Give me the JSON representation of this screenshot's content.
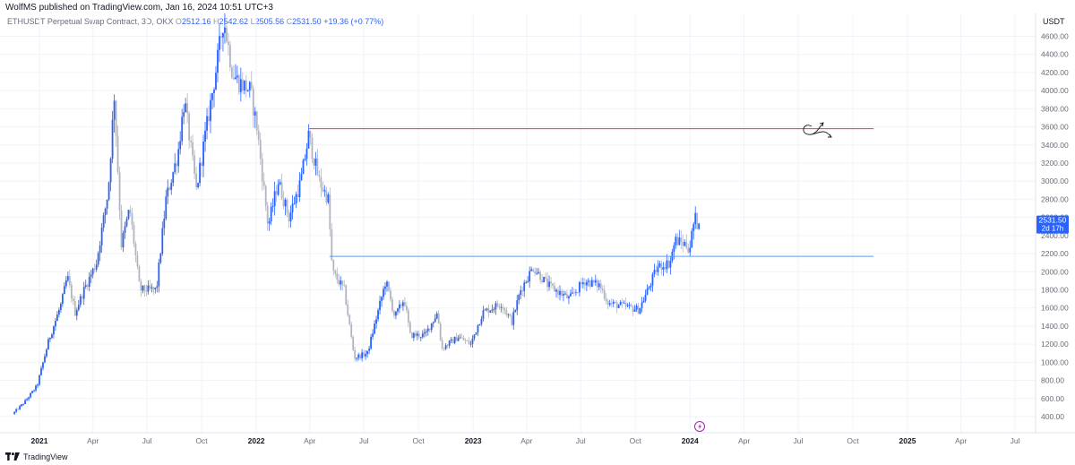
{
  "header": {
    "published_text": "WolfMS published on TradingView.com, Jan 16, 2024 10:51 UTC+3"
  },
  "legend": {
    "symbol": "ETHUSDT Perpetual Swap Contract, 3D, OKX",
    "open_label": "O",
    "open": "2512.16",
    "high_label": "H",
    "high": "2542.62",
    "low_label": "L",
    "low": "2505.56",
    "close_label": "C",
    "close": "2531.50",
    "change": "+19.36 (+0.77%)"
  },
  "price_axis": {
    "currency": "USDT",
    "last_price": "2531.50",
    "countdown": "2d 17h"
  },
  "footer": {
    "brand": "TradingView"
  },
  "colors": {
    "up": "#2962ff",
    "down": "#b2b5be",
    "resistance": "#f23645",
    "support": "#5b9cf6",
    "price_tag": "#2962ff"
  },
  "chart_data": {
    "type": "candlestick",
    "title": "ETHUSDT Perpetual Swap Contract, 3D, OKX",
    "ylim": [
      250,
      4860
    ],
    "y_ticks": [
      "400.00",
      "600.00",
      "800.00",
      "1000.00",
      "1200.00",
      "1400.00",
      "1600.00",
      "1800.00",
      "2000.00",
      "2200.00",
      "2400.00",
      "2600.00",
      "2800.00",
      "3000.00",
      "3200.00",
      "3400.00",
      "3600.00",
      "3800.00",
      "4000.00",
      "4200.00",
      "4400.00",
      "4600.00"
    ],
    "x_ticks": [
      {
        "label": "2021",
        "date": "2021-01-01",
        "bold": true
      },
      {
        "label": "Apr",
        "date": "2021-04-01"
      },
      {
        "label": "Jul",
        "date": "2021-07-01"
      },
      {
        "label": "Oct",
        "date": "2021-10-01"
      },
      {
        "label": "2022",
        "date": "2022-01-01",
        "bold": true
      },
      {
        "label": "Apr",
        "date": "2022-04-01"
      },
      {
        "label": "Jul",
        "date": "2022-07-01"
      },
      {
        "label": "Oct",
        "date": "2022-10-01"
      },
      {
        "label": "2023",
        "date": "2023-01-01",
        "bold": true
      },
      {
        "label": "Apr",
        "date": "2023-04-01"
      },
      {
        "label": "Jul",
        "date": "2023-07-01"
      },
      {
        "label": "Oct",
        "date": "2023-10-01"
      },
      {
        "label": "2024",
        "date": "2024-01-01",
        "bold": true
      },
      {
        "label": "Apr",
        "date": "2024-04-01"
      },
      {
        "label": "Jul",
        "date": "2024-07-01"
      },
      {
        "label": "Oct",
        "date": "2024-10-01"
      },
      {
        "label": "2025",
        "date": "2025-01-01",
        "bold": true
      },
      {
        "label": "Apr",
        "date": "2025-04-01"
      },
      {
        "label": "Jul",
        "date": "2025-07-01"
      }
    ],
    "horizontal_levels": [
      {
        "price": 3580,
        "from": "2022-03-31",
        "to": "2024-11-05",
        "role": "resistance"
      },
      {
        "price": 2170,
        "from": "2022-05-04",
        "to": "2024-11-05",
        "role": "support"
      }
    ],
    "price_path": [
      {
        "date": "2020-11-20",
        "price": 430
      },
      {
        "date": "2020-12-10",
        "price": 560
      },
      {
        "date": "2020-12-31",
        "price": 740
      },
      {
        "date": "2021-01-20",
        "price": 1250
      },
      {
        "date": "2021-02-10",
        "price": 1650
      },
      {
        "date": "2021-02-20",
        "price": 1950
      },
      {
        "date": "2021-03-05",
        "price": 1550
      },
      {
        "date": "2021-03-20",
        "price": 1800
      },
      {
        "date": "2021-04-10",
        "price": 2100
      },
      {
        "date": "2021-04-30",
        "price": 2900
      },
      {
        "date": "2021-05-10",
        "price": 3950
      },
      {
        "date": "2021-05-22",
        "price": 2300
      },
      {
        "date": "2021-06-05",
        "price": 2700
      },
      {
        "date": "2021-06-22",
        "price": 1800
      },
      {
        "date": "2021-07-20",
        "price": 1800
      },
      {
        "date": "2021-08-05",
        "price": 2800
      },
      {
        "date": "2021-08-25",
        "price": 3300
      },
      {
        "date": "2021-09-05",
        "price": 3900
      },
      {
        "date": "2021-09-25",
        "price": 2900
      },
      {
        "date": "2021-10-10",
        "price": 3500
      },
      {
        "date": "2021-10-30",
        "price": 4300
      },
      {
        "date": "2021-11-10",
        "price": 4800
      },
      {
        "date": "2021-11-25",
        "price": 4200
      },
      {
        "date": "2021-12-05",
        "price": 4100
      },
      {
        "date": "2021-12-25",
        "price": 4000
      },
      {
        "date": "2022-01-05",
        "price": 3600
      },
      {
        "date": "2022-01-24",
        "price": 2500
      },
      {
        "date": "2022-02-10",
        "price": 3000
      },
      {
        "date": "2022-02-28",
        "price": 2600
      },
      {
        "date": "2022-03-20",
        "price": 3000
      },
      {
        "date": "2022-04-02",
        "price": 3500
      },
      {
        "date": "2022-04-20",
        "price": 3000
      },
      {
        "date": "2022-05-05",
        "price": 2800
      },
      {
        "date": "2022-05-12",
        "price": 2000
      },
      {
        "date": "2022-06-01",
        "price": 1800
      },
      {
        "date": "2022-06-18",
        "price": 1050
      },
      {
        "date": "2022-07-10",
        "price": 1100
      },
      {
        "date": "2022-08-10",
        "price": 1900
      },
      {
        "date": "2022-08-25",
        "price": 1500
      },
      {
        "date": "2022-09-10",
        "price": 1700
      },
      {
        "date": "2022-09-20",
        "price": 1300
      },
      {
        "date": "2022-10-15",
        "price": 1300
      },
      {
        "date": "2022-11-05",
        "price": 1550
      },
      {
        "date": "2022-11-12",
        "price": 1150
      },
      {
        "date": "2022-12-10",
        "price": 1280
      },
      {
        "date": "2022-12-31",
        "price": 1200
      },
      {
        "date": "2023-01-20",
        "price": 1550
      },
      {
        "date": "2023-02-20",
        "price": 1650
      },
      {
        "date": "2023-03-10",
        "price": 1450
      },
      {
        "date": "2023-03-25",
        "price": 1800
      },
      {
        "date": "2023-04-15",
        "price": 2050
      },
      {
        "date": "2023-05-10",
        "price": 1850
      },
      {
        "date": "2023-06-15",
        "price": 1700
      },
      {
        "date": "2023-07-10",
        "price": 1900
      },
      {
        "date": "2023-08-05",
        "price": 1850
      },
      {
        "date": "2023-08-20",
        "price": 1650
      },
      {
        "date": "2023-09-15",
        "price": 1620
      },
      {
        "date": "2023-10-10",
        "price": 1580
      },
      {
        "date": "2023-10-25",
        "price": 1800
      },
      {
        "date": "2023-11-10",
        "price": 2050
      },
      {
        "date": "2023-12-01",
        "price": 2100
      },
      {
        "date": "2023-12-10",
        "price": 2350
      },
      {
        "date": "2023-12-28",
        "price": 2300
      },
      {
        "date": "2024-01-03",
        "price": 2250
      },
      {
        "date": "2024-01-12",
        "price": 2600
      },
      {
        "date": "2024-01-16",
        "price": 2531.5
      }
    ]
  }
}
